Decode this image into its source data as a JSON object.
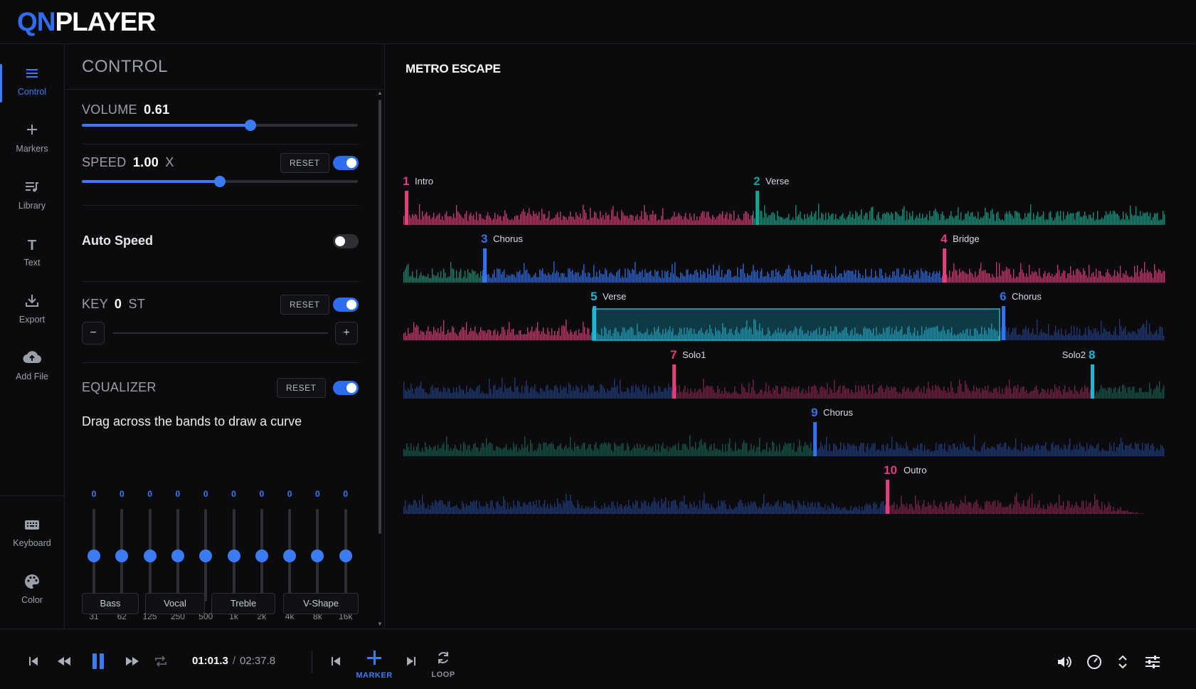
{
  "app": {
    "logo_part1": "QN",
    "logo_part2": "PLAYER",
    "accent": "#2f6df0"
  },
  "sidebar": {
    "items": [
      {
        "label": "Control",
        "icon": "menu-icon",
        "active": true
      },
      {
        "label": "Markers",
        "icon": "plus-icon"
      },
      {
        "label": "Library",
        "icon": "playlist-icon"
      },
      {
        "label": "Text",
        "icon": "text-icon"
      },
      {
        "label": "Export",
        "icon": "download-icon"
      },
      {
        "label": "Add File",
        "icon": "cloud-upload-icon"
      },
      {
        "label": "Keyboard",
        "icon": "keyboard-icon"
      },
      {
        "label": "Color",
        "icon": "palette-icon"
      }
    ]
  },
  "control": {
    "title": "CONTROL",
    "volume": {
      "label": "VOLUME",
      "value": "0.61",
      "level": 0.61
    },
    "speed": {
      "label": "SPEED",
      "value": "1.00",
      "unit": "X",
      "reset": "RESET",
      "enabled": true,
      "level": 0.5
    },
    "auto_speed": {
      "label": "Auto Speed",
      "enabled": false
    },
    "key": {
      "label": "KEY",
      "value": "0",
      "unit": "ST",
      "reset": "RESET",
      "enabled": true,
      "minus": "−",
      "plus": "+"
    },
    "equalizer": {
      "label": "EQUALIZER",
      "reset": "RESET",
      "enabled": true,
      "hint": "Drag across the bands to draw a curve",
      "bands": [
        {
          "freq": "31",
          "gain": "0"
        },
        {
          "freq": "62",
          "gain": "0"
        },
        {
          "freq": "125",
          "gain": "0"
        },
        {
          "freq": "250",
          "gain": "0"
        },
        {
          "freq": "500",
          "gain": "0"
        },
        {
          "freq": "1k",
          "gain": "0"
        },
        {
          "freq": "2k",
          "gain": "0"
        },
        {
          "freq": "4k",
          "gain": "0"
        },
        {
          "freq": "8k",
          "gain": "0"
        },
        {
          "freq": "16k",
          "gain": "0"
        }
      ],
      "presets": [
        "Bass",
        "Vocal",
        "Treble",
        "V-Shape"
      ]
    }
  },
  "waveform": {
    "title": "METRO ESCAPE",
    "colors": {
      "pink": "#e23d7d",
      "teal": "#12a58d",
      "blue": "#3372ee",
      "cyan": "#1ab8d6",
      "pink_dim": "#7a2346",
      "teal_dim": "#115a4f",
      "blue_dim": "#1f3b7a"
    },
    "markers": [
      {
        "num": "1",
        "label": "Intro",
        "color": "#e23d7d"
      },
      {
        "num": "2",
        "label": "Verse",
        "color": "#12a58d"
      },
      {
        "num": "3",
        "label": "Chorus",
        "color": "#3372ee"
      },
      {
        "num": "4",
        "label": "Bridge",
        "color": "#e23d7d"
      },
      {
        "num": "5",
        "label": "Verse",
        "color": "#1ab8d6"
      },
      {
        "num": "6",
        "label": "Chorus",
        "color": "#3372ee"
      },
      {
        "num": "7",
        "label": "Solo1",
        "color": "#e23d7d"
      },
      {
        "num": "8",
        "label": "Solo2",
        "color": "#1ab8d6"
      },
      {
        "num": "9",
        "label": "Chorus",
        "color": "#3372ee"
      },
      {
        "num": "10",
        "label": "Outro",
        "color": "#e23d7d"
      }
    ]
  },
  "transport": {
    "current_time": "01:01.3",
    "separator": "/",
    "total_time": "02:37.8",
    "marker_label": "MARKER",
    "loop_label": "LOOP"
  }
}
